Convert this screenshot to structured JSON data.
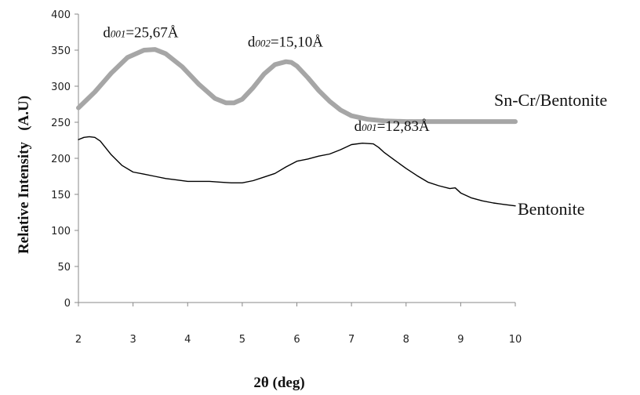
{
  "chart_data": {
    "type": "line",
    "title": "",
    "xlabel": "2θ (deg)",
    "ylabel": "Relative Intensity   (A.U)",
    "xlim": [
      2,
      10
    ],
    "ylim": [
      0,
      400
    ],
    "x_ticks": [
      2,
      3,
      4,
      5,
      6,
      7,
      8,
      9,
      10
    ],
    "y_ticks": [
      0,
      50,
      100,
      150,
      200,
      250,
      300,
      350,
      400
    ],
    "grid": false,
    "legend": "none",
    "series": [
      {
        "name": "Sn-Cr/Bentonite",
        "color": "#a6a6a6",
        "x": [
          2.0,
          2.3,
          2.6,
          2.9,
          3.2,
          3.4,
          3.6,
          3.9,
          4.2,
          4.5,
          4.7,
          4.85,
          5.0,
          5.2,
          5.4,
          5.6,
          5.8,
          5.9,
          6.0,
          6.2,
          6.4,
          6.6,
          6.8,
          7.0,
          7.3,
          7.6,
          8.0,
          8.4,
          9.0,
          9.5,
          10.0
        ],
        "y": [
          270,
          292,
          318,
          340,
          350,
          351,
          345,
          327,
          303,
          283,
          277,
          277,
          282,
          298,
          317,
          330,
          334,
          333,
          328,
          312,
          294,
          279,
          267,
          259,
          254,
          252,
          251,
          251,
          251,
          251,
          251
        ]
      },
      {
        "name": "Bentonite",
        "color": "#000000",
        "x": [
          2.0,
          2.1,
          2.2,
          2.3,
          2.4,
          2.6,
          2.8,
          3.0,
          3.2,
          3.4,
          3.6,
          3.8,
          4.0,
          4.2,
          4.4,
          4.6,
          4.8,
          5.0,
          5.2,
          5.4,
          5.6,
          5.8,
          6.0,
          6.2,
          6.4,
          6.6,
          6.8,
          7.0,
          7.2,
          7.4,
          7.5,
          7.6,
          7.8,
          8.0,
          8.2,
          8.4,
          8.6,
          8.8,
          8.9,
          9.0,
          9.2,
          9.4,
          9.6,
          9.8,
          10.0
        ],
        "y": [
          226,
          229,
          230,
          229,
          224,
          205,
          190,
          181,
          178,
          175,
          172,
          170,
          168,
          168,
          168,
          167,
          166,
          166,
          169,
          174,
          179,
          188,
          196,
          199,
          203,
          206,
          212,
          219,
          221,
          220,
          215,
          208,
          197,
          186,
          176,
          167,
          162,
          158,
          159,
          152,
          145,
          141,
          138,
          136,
          134
        ]
      }
    ],
    "annotations": [
      {
        "prefix": "d",
        "sub": "001",
        "rest": "=25,67Å",
        "x": 2.45,
        "y": 368
      },
      {
        "prefix": "d",
        "sub": "002",
        "rest": "=15,10Å",
        "x": 5.1,
        "y": 355
      },
      {
        "prefix": "d",
        "sub": "001",
        "rest": "=12,83Å",
        "x": 7.05,
        "y": 238
      }
    ]
  }
}
